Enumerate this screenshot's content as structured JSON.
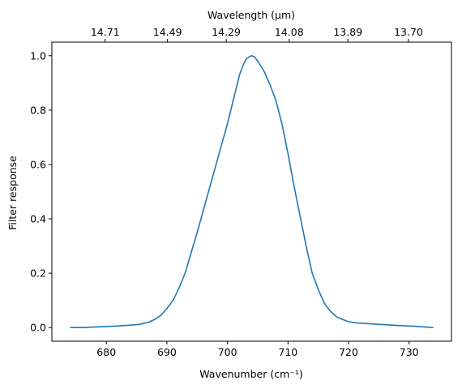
{
  "chart_data": {
    "type": "line",
    "xlabel": "Wavenumber (cm⁻¹)",
    "ylabel": "Filter response",
    "top_xlabel": "Wavelength (μm)",
    "xlim": [
      671.0,
      737.0
    ],
    "ylim": [
      -0.05,
      1.05
    ],
    "x_ticks": [
      680,
      690,
      700,
      710,
      720,
      730
    ],
    "y_ticks": [
      0.0,
      0.2,
      0.4,
      0.6,
      0.8,
      1.0
    ],
    "x_tick_labels": [
      "680",
      "690",
      "700",
      "710",
      "720",
      "730"
    ],
    "y_tick_labels": [
      "0.0",
      "0.2",
      "0.4",
      "0.6",
      "0.8",
      "1.0"
    ],
    "top_ticks": [
      {
        "label": "14.71",
        "wavenumber": 679.8
      },
      {
        "label": "14.49",
        "wavenumber": 690.1
      },
      {
        "label": "14.29",
        "wavenumber": 699.8
      },
      {
        "label": "14.08",
        "wavenumber": 710.2
      },
      {
        "label": "13.89",
        "wavenumber": 719.9
      },
      {
        "label": "13.70",
        "wavenumber": 729.9
      }
    ],
    "line_color": "#1f77b4",
    "grid": false,
    "series": [
      {
        "x": [
          674,
          676,
          678,
          680,
          682,
          684,
          685.5,
          687,
          688,
          689,
          690,
          691,
          692,
          693,
          694,
          695,
          696,
          697,
          698,
          699,
          700,
          701,
          702,
          702.5,
          703,
          703.5,
          704,
          704.5,
          705,
          706,
          707,
          708,
          709,
          710,
          711,
          712,
          713,
          714,
          715,
          716,
          717,
          718,
          719,
          720,
          721,
          722,
          725,
          728,
          731,
          734
        ],
        "y": [
          0.0,
          0.0,
          0.002,
          0.004,
          0.006,
          0.009,
          0.012,
          0.02,
          0.03,
          0.045,
          0.07,
          0.1,
          0.145,
          0.2,
          0.275,
          0.35,
          0.43,
          0.51,
          0.59,
          0.67,
          0.75,
          0.84,
          0.93,
          0.96,
          0.985,
          0.995,
          1.0,
          0.995,
          0.98,
          0.945,
          0.895,
          0.835,
          0.75,
          0.64,
          0.52,
          0.41,
          0.3,
          0.2,
          0.14,
          0.09,
          0.06,
          0.04,
          0.03,
          0.022,
          0.018,
          0.016,
          0.012,
          0.008,
          0.005,
          0.0
        ]
      }
    ]
  }
}
